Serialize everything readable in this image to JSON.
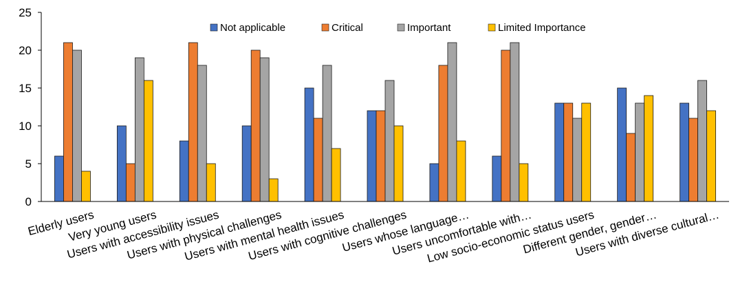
{
  "chart_data": {
    "type": "bar",
    "title": "",
    "xlabel": "",
    "ylabel": "",
    "ylim": [
      0,
      25
    ],
    "yticks": [
      0,
      5,
      10,
      15,
      20,
      25
    ],
    "grid": false,
    "legend_position": "top-center",
    "categories": [
      "Elderly users",
      "Very young users",
      "Users with accessibility issues",
      "Users with physical challenges",
      "Users with mental health issues",
      "Users with cognitive challenges",
      "Users whose language…",
      "Users uncomfortable with…",
      "Low socio-economic status users",
      "Different gender, gender…",
      "Users with diverse cultural…"
    ],
    "series": [
      {
        "name": "Not applicable",
        "color": "#4472C4",
        "values": [
          6,
          10,
          8,
          10,
          15,
          12,
          5,
          6,
          13,
          15,
          13
        ]
      },
      {
        "name": "Critical",
        "color": "#ED7D31",
        "values": [
          21,
          5,
          21,
          20,
          11,
          12,
          18,
          20,
          13,
          9,
          11
        ]
      },
      {
        "name": "Important",
        "color": "#A5A5A5",
        "values": [
          20,
          19,
          18,
          19,
          18,
          16,
          21,
          21,
          11,
          13,
          16
        ]
      },
      {
        "name": "Limited Importance",
        "color": "#FFC000",
        "values": [
          4,
          16,
          5,
          3,
          7,
          10,
          8,
          5,
          13,
          14,
          12
        ]
      }
    ]
  }
}
